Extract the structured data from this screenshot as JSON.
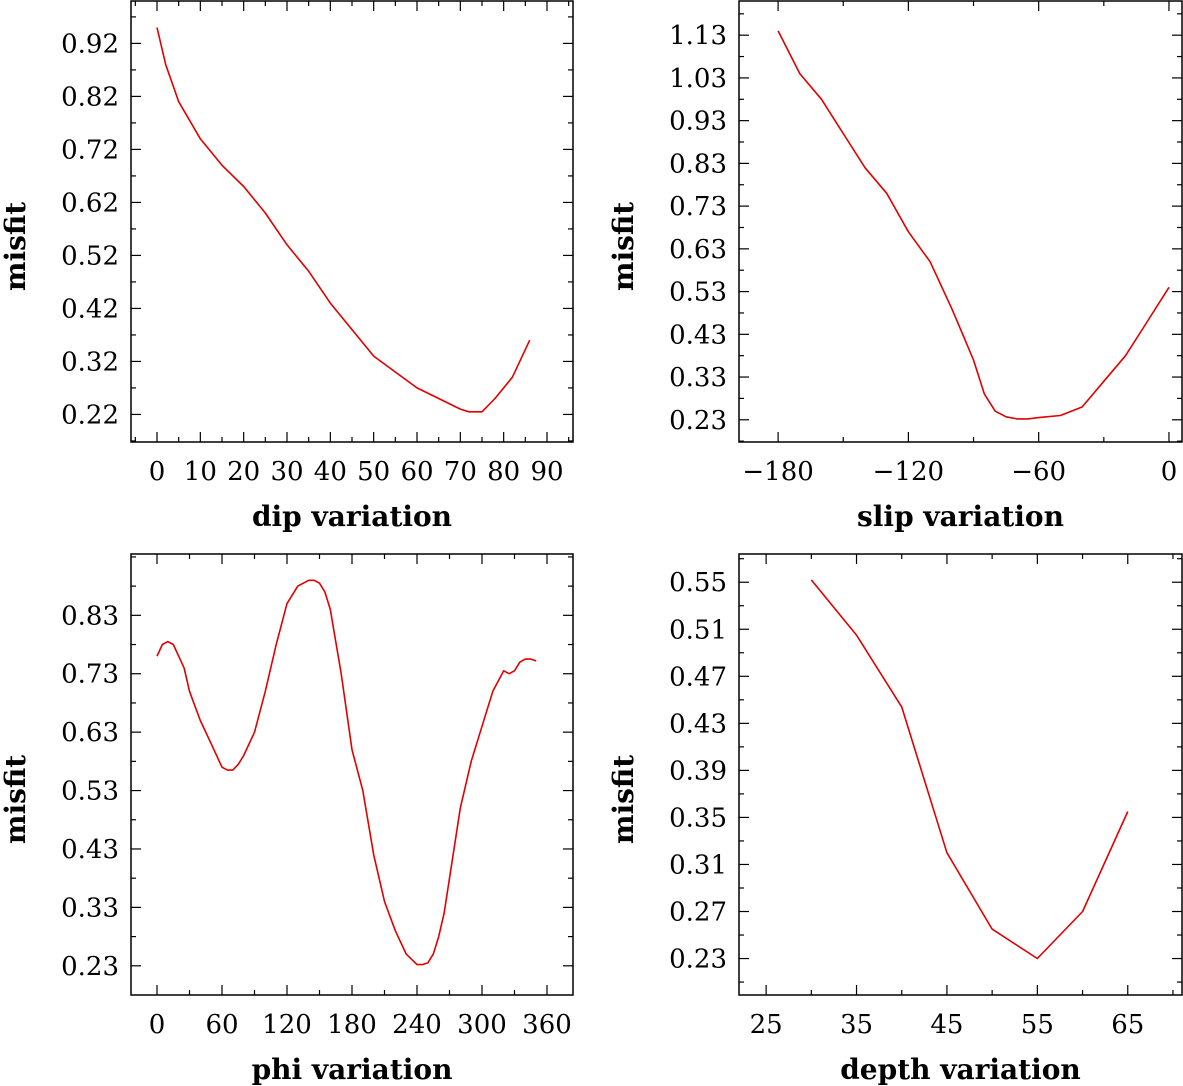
{
  "chart_data": [
    {
      "type": "line",
      "id": "dip",
      "xlabel": "dip     variation",
      "ylabel": "misfit",
      "xlim": [
        -6,
        96
      ],
      "ylim": [
        0.168,
        1.0
      ],
      "xticks": [
        0,
        10,
        20,
        30,
        40,
        50,
        60,
        70,
        80,
        90
      ],
      "xtick_labels": [
        "0",
        "10",
        "20",
        "30",
        "40",
        "50",
        "60",
        "70",
        "80",
        "90"
      ],
      "yticks": [
        0.22,
        0.32,
        0.42,
        0.52,
        0.62,
        0.72,
        0.82,
        0.92
      ],
      "ytick_labels": [
        "0.22",
        "0.32",
        "0.42",
        "0.52",
        "0.62",
        "0.72",
        "0.82",
        "0.92"
      ],
      "series": [
        {
          "name": "misfit",
          "color": "#e00000",
          "x": [
            0,
            2,
            5,
            10,
            15,
            20,
            25,
            30,
            35,
            40,
            45,
            50,
            55,
            60,
            65,
            70,
            72,
            75,
            78,
            82,
            86
          ],
          "y": [
            0.95,
            0.88,
            0.81,
            0.74,
            0.69,
            0.65,
            0.6,
            0.54,
            0.49,
            0.43,
            0.38,
            0.33,
            0.3,
            0.27,
            0.25,
            0.23,
            0.225,
            0.225,
            0.25,
            0.29,
            0.36
          ]
        }
      ]
    },
    {
      "type": "line",
      "id": "slip",
      "xlabel": "slip    variation",
      "ylabel": "misfit",
      "xlim": [
        -198,
        6
      ],
      "ylim": [
        0.178,
        1.21
      ],
      "xticks": [
        -180,
        -120,
        -60,
        0
      ],
      "xtick_labels": [
        "−180",
        "−120",
        "−60",
        "0"
      ],
      "yticks": [
        0.23,
        0.33,
        0.43,
        0.53,
        0.63,
        0.73,
        0.83,
        0.93,
        1.03,
        1.13
      ],
      "ytick_labels": [
        "0.23",
        "0.33",
        "0.43",
        "0.53",
        "0.63",
        "0.73",
        "0.83",
        "0.93",
        "1.03",
        "1.13"
      ],
      "series": [
        {
          "name": "misfit",
          "color": "#e00000",
          "x": [
            -180,
            -170,
            -160,
            -150,
            -140,
            -130,
            -120,
            -110,
            -100,
            -95,
            -90,
            -85,
            -80,
            -75,
            -70,
            -65,
            -60,
            -50,
            -40,
            -30,
            -20,
            -10,
            0
          ],
          "y": [
            1.14,
            1.04,
            0.98,
            0.9,
            0.82,
            0.76,
            0.67,
            0.6,
            0.49,
            0.43,
            0.37,
            0.29,
            0.25,
            0.237,
            0.232,
            0.232,
            0.235,
            0.24,
            0.26,
            0.32,
            0.38,
            0.46,
            0.54
          ]
        }
      ]
    },
    {
      "type": "line",
      "id": "phi",
      "xlabel": "phi     variation",
      "ylabel": "misfit",
      "xlim": [
        -24,
        384
      ],
      "ylim": [
        0.18,
        0.935
      ],
      "xticks": [
        0,
        60,
        120,
        180,
        240,
        300,
        360
      ],
      "xtick_labels": [
        "0",
        "60",
        "120",
        "180",
        "240",
        "300",
        "360"
      ],
      "yticks": [
        0.23,
        0.33,
        0.43,
        0.53,
        0.63,
        0.73,
        0.83
      ],
      "ytick_labels": [
        "0.23",
        "0.33",
        "0.43",
        "0.53",
        "0.63",
        "0.73",
        "0.83"
      ],
      "series": [
        {
          "name": "misfit",
          "color": "#e00000",
          "x": [
            0,
            5,
            10,
            15,
            20,
            25,
            30,
            40,
            50,
            60,
            65,
            70,
            75,
            80,
            90,
            100,
            110,
            120,
            130,
            135,
            140,
            145,
            150,
            155,
            160,
            170,
            180,
            190,
            200,
            210,
            220,
            230,
            240,
            245,
            250,
            255,
            260,
            265,
            270,
            280,
            290,
            300,
            310,
            320,
            325,
            330,
            335,
            340,
            345,
            350
          ],
          "y": [
            0.76,
            0.78,
            0.785,
            0.78,
            0.76,
            0.74,
            0.7,
            0.65,
            0.61,
            0.57,
            0.565,
            0.565,
            0.575,
            0.59,
            0.63,
            0.7,
            0.78,
            0.85,
            0.88,
            0.885,
            0.89,
            0.89,
            0.885,
            0.87,
            0.84,
            0.73,
            0.6,
            0.53,
            0.42,
            0.34,
            0.29,
            0.25,
            0.232,
            0.232,
            0.235,
            0.25,
            0.28,
            0.32,
            0.38,
            0.5,
            0.58,
            0.64,
            0.7,
            0.735,
            0.73,
            0.735,
            0.75,
            0.755,
            0.755,
            0.752
          ]
        }
      ]
    },
    {
      "type": "line",
      "id": "depth",
      "xlabel": "depth   variation",
      "ylabel": "misfit",
      "xlim": [
        22,
        71
      ],
      "ylim": [
        0.199,
        0.574
      ],
      "xticks": [
        25,
        35,
        45,
        55,
        65
      ],
      "xtick_labels": [
        "25",
        "35",
        "45",
        "55",
        "65"
      ],
      "yticks": [
        0.23,
        0.27,
        0.31,
        0.35,
        0.39,
        0.43,
        0.47,
        0.51,
        0.55
      ],
      "ytick_labels": [
        "0.23",
        "0.27",
        "0.31",
        "0.35",
        "0.39",
        "0.43",
        "0.47",
        "0.51",
        "0.55"
      ],
      "series": [
        {
          "name": "misfit",
          "color": "#e00000",
          "x": [
            30,
            35,
            40,
            45,
            50,
            55,
            60,
            65
          ],
          "y": [
            0.552,
            0.505,
            0.444,
            0.32,
            0.255,
            0.23,
            0.27,
            0.355
          ]
        }
      ]
    }
  ]
}
